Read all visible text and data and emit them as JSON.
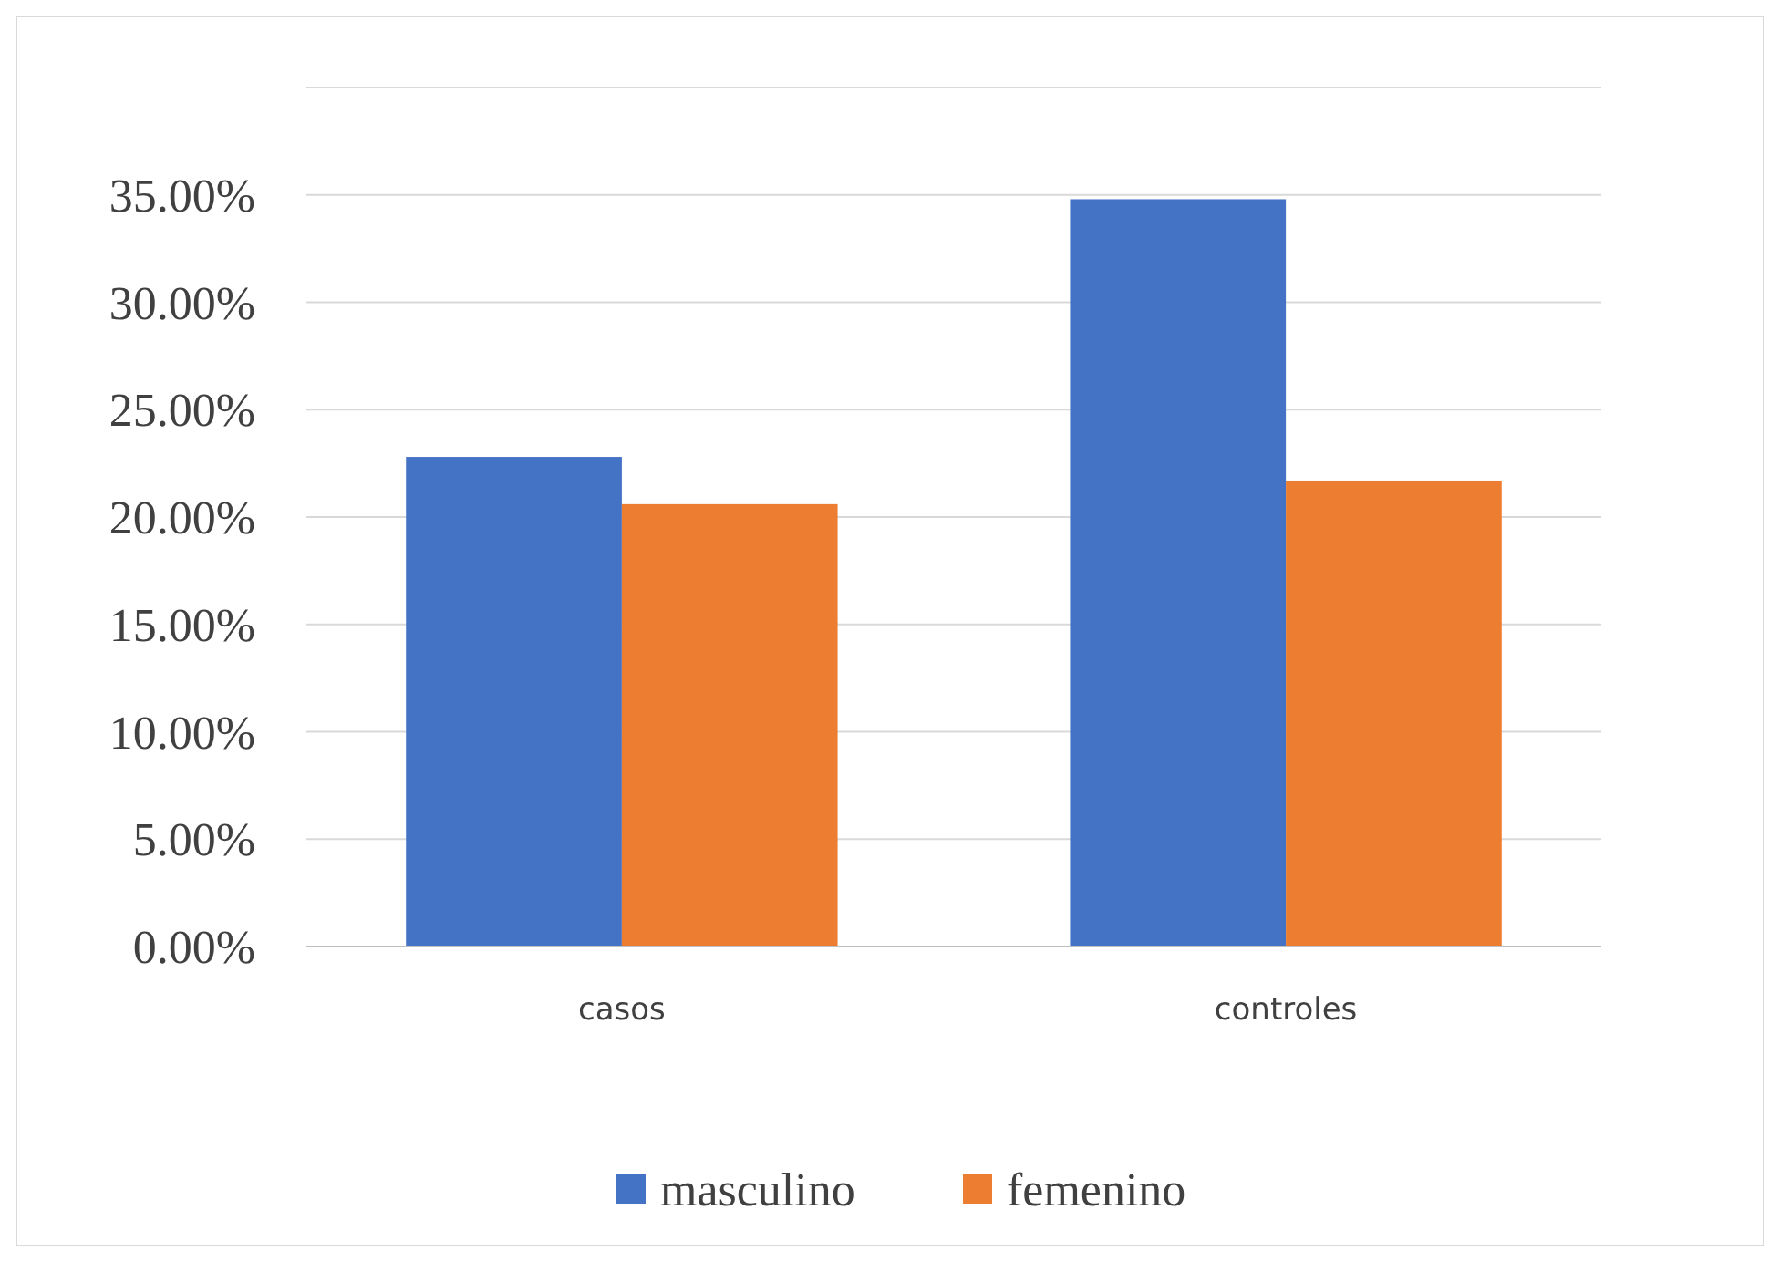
{
  "chart_data": {
    "type": "bar",
    "categories": [
      "casos",
      "controles"
    ],
    "series": [
      {
        "name": "masculino",
        "color": "#4472c4",
        "values": [
          22.8,
          34.8
        ]
      },
      {
        "name": "femenino",
        "color": "#ed7d31",
        "values": [
          20.6,
          21.7
        ]
      }
    ],
    "ylim": [
      0,
      40
    ],
    "yticks": [
      {
        "value": 0,
        "label": "0.00%"
      },
      {
        "value": 5,
        "label": "5.00%"
      },
      {
        "value": 10,
        "label": "10.00%"
      },
      {
        "value": 15,
        "label": "15.00%"
      },
      {
        "value": 20,
        "label": "20.00%"
      },
      {
        "value": 25,
        "label": "25.00%"
      },
      {
        "value": 30,
        "label": "30.00%"
      },
      {
        "value": 35,
        "label": "35.00%"
      },
      {
        "value": 40,
        "label": null
      }
    ],
    "grid": "y",
    "legend": "bottom"
  }
}
